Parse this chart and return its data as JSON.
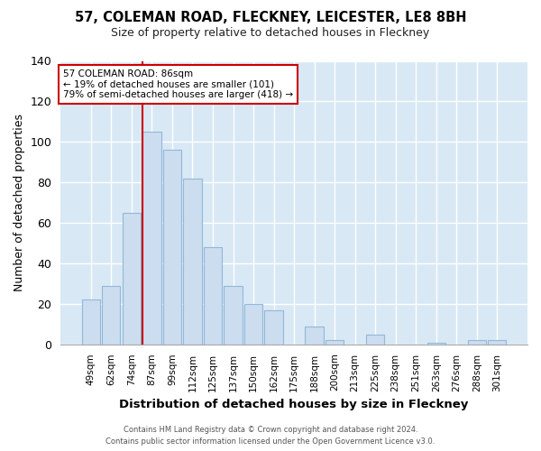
{
  "title": "57, COLEMAN ROAD, FLECKNEY, LEICESTER, LE8 8BH",
  "subtitle": "Size of property relative to detached houses in Fleckney",
  "xlabel": "Distribution of detached houses by size in Fleckney",
  "ylabel": "Number of detached properties",
  "bar_labels": [
    "49sqm",
    "62sqm",
    "74sqm",
    "87sqm",
    "99sqm",
    "112sqm",
    "125sqm",
    "137sqm",
    "150sqm",
    "162sqm",
    "175sqm",
    "188sqm",
    "200sqm",
    "213sqm",
    "225sqm",
    "238sqm",
    "251sqm",
    "263sqm",
    "276sqm",
    "288sqm",
    "301sqm"
  ],
  "bar_values": [
    22,
    29,
    65,
    105,
    96,
    82,
    48,
    29,
    20,
    17,
    0,
    9,
    2,
    0,
    5,
    0,
    0,
    1,
    0,
    2,
    2
  ],
  "bar_color": "#ccddf0",
  "bar_edge_color": "#93b8d8",
  "vline_color": "#cc0000",
  "vline_index": 3,
  "ylim": [
    0,
    140
  ],
  "yticks": [
    0,
    20,
    40,
    60,
    80,
    100,
    120,
    140
  ],
  "annotation_title": "57 COLEMAN ROAD: 86sqm",
  "annotation_line1": "← 19% of detached houses are smaller (101)",
  "annotation_line2": "79% of semi-detached houses are larger (418) →",
  "annotation_box_color": "#ffffff",
  "annotation_box_edgecolor": "#cc0000",
  "grid_color": "#d8e8f5",
  "footer_line1": "Contains HM Land Registry data © Crown copyright and database right 2024.",
  "footer_line2": "Contains public sector information licensed under the Open Government Licence v3.0."
}
